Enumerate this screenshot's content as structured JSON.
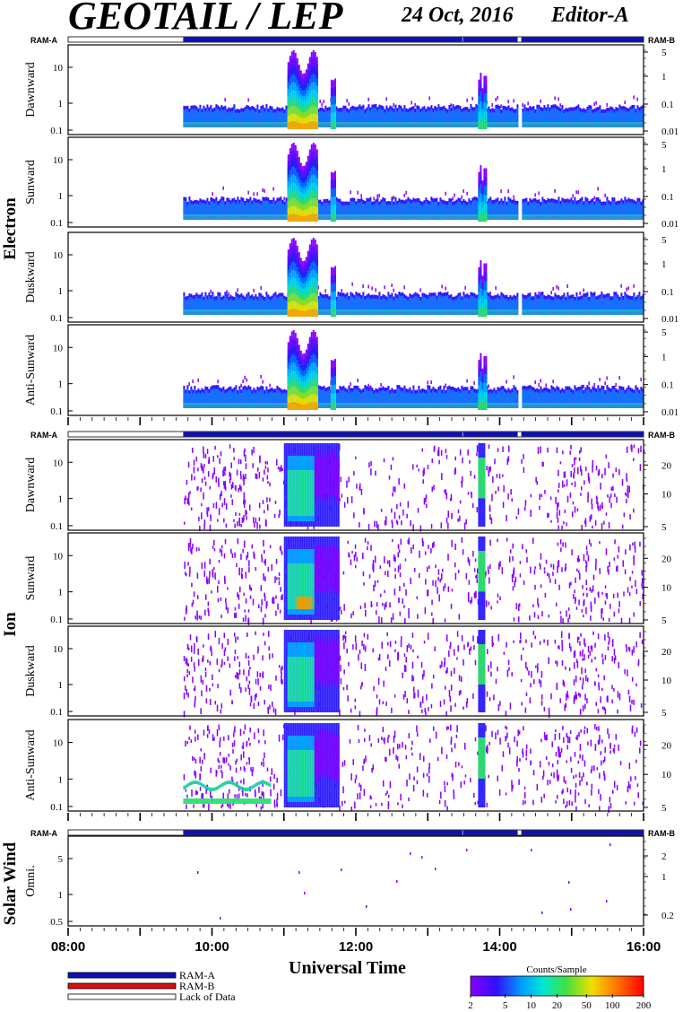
{
  "header": {
    "title": "GEOTAIL / LEP",
    "date": "24 Oct, 2016",
    "editor": "Editor-A"
  },
  "groups": {
    "electron": "Electron",
    "ion": "Ion",
    "solar_wind": "Solar Wind"
  },
  "ram": {
    "a": "RAM-A",
    "b": "RAM-B"
  },
  "panels": [
    {
      "label": "Dawnward",
      "group": "Electron"
    },
    {
      "label": "Sunward",
      "group": "Electron"
    },
    {
      "label": "Duskward",
      "group": "Electron"
    },
    {
      "label": "Anti-Sunward",
      "group": "Electron"
    },
    {
      "label": "Dawnward",
      "group": "Ion"
    },
    {
      "label": "Sunward",
      "group": "Ion"
    },
    {
      "label": "Duskward",
      "group": "Ion"
    },
    {
      "label": "Anti-Sunward",
      "group": "Ion"
    },
    {
      "label": "Omni.",
      "group": "Solar Wind"
    }
  ],
  "colors": {
    "ram_a": "#1010b8",
    "ram_b": "#d81010",
    "lack_of_data": "#ffffff"
  },
  "legend": {
    "items": [
      {
        "label": "RAM-A",
        "color": "#1010b8"
      },
      {
        "label": "RAM-B",
        "color": "#d81010"
      },
      {
        "label": "Lack of Data",
        "color": "#ffffff"
      }
    ],
    "colorbar_title": "Counts/Sample",
    "colorbar_ticks": [
      "2",
      "5",
      "10",
      "20",
      "50",
      "100",
      "200"
    ]
  },
  "chart_data": {
    "type": "heatmap",
    "xlabel": "Universal Time",
    "x_ticks": [
      "08:00",
      "10:00",
      "12:00",
      "14:00",
      "16:00"
    ],
    "x_range_hours": [
      8,
      16
    ],
    "data_start_hour": 9.6,
    "data_gaps_hours": [
      [
        14.25,
        14.3
      ]
    ],
    "electron_panels": {
      "y_ticks_left": [
        "10",
        "1",
        "0.1"
      ],
      "y_ticks_right": [
        "5",
        "1",
        "0.1",
        "0.01"
      ],
      "events": [
        {
          "start_hour": 11.05,
          "end_hour": 11.45,
          "intensity": "high"
        },
        {
          "start_hour": 11.65,
          "end_hour": 11.72,
          "intensity": "medium"
        },
        {
          "start_hour": 13.7,
          "end_hour": 13.8,
          "intensity": "medium"
        }
      ]
    },
    "ion_panels": {
      "y_ticks_left": [
        "10",
        "1",
        "0.1"
      ],
      "y_ticks_right": [
        "20",
        "10",
        "5"
      ],
      "events": [
        {
          "start_hour": 11.0,
          "end_hour": 11.75,
          "intensity": "high"
        },
        {
          "start_hour": 13.7,
          "end_hour": 13.78,
          "intensity": "medium"
        }
      ]
    },
    "solar_wind_panel": {
      "y_ticks_left": [
        "5",
        "1",
        "0.5"
      ],
      "y_ticks_right": [
        "2",
        "1",
        "0.2"
      ]
    }
  }
}
